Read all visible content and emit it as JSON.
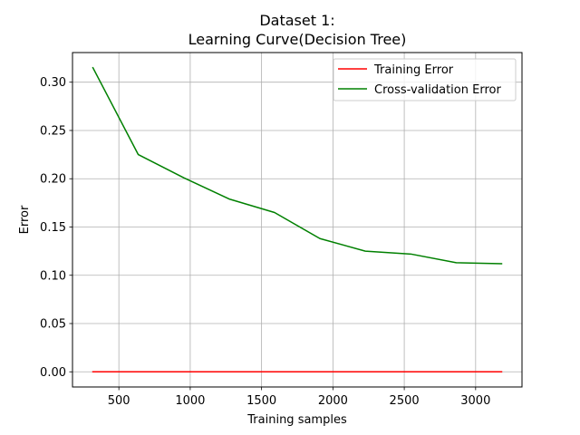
{
  "chart_data": {
    "type": "line",
    "title": "Dataset 1:",
    "subtitle": "Learning Curve(Decision Tree)",
    "xlabel": "Training samples",
    "ylabel": "Error",
    "x": [
      318,
      636,
      955,
      1273,
      1591,
      1909,
      2227,
      2546,
      2864,
      3182
    ],
    "series": [
      {
        "name": "Training Error",
        "color": "#ff0000",
        "values": [
          0,
          0,
          0,
          0,
          0,
          0,
          0,
          0,
          0,
          0
        ]
      },
      {
        "name": "Cross-validation Error",
        "color": "#008000",
        "values": [
          0.315,
          0.225,
          0.201,
          0.179,
          0.165,
          0.138,
          0.125,
          0.122,
          0.113,
          0.112
        ]
      }
    ],
    "xlim": [
      175,
      3325
    ],
    "ylim": [
      -0.0157,
      0.3307
    ],
    "xticks": [
      500,
      1000,
      1500,
      2000,
      2500,
      3000
    ],
    "xtick_labels": [
      "500",
      "1000",
      "1500",
      "2000",
      "2500",
      "3000"
    ],
    "yticks": [
      0.0,
      0.05,
      0.1,
      0.15,
      0.2,
      0.25,
      0.3
    ],
    "ytick_labels": [
      "0.00",
      "0.05",
      "0.10",
      "0.15",
      "0.20",
      "0.25",
      "0.30"
    ],
    "grid": true,
    "legend_position": "top-right"
  }
}
